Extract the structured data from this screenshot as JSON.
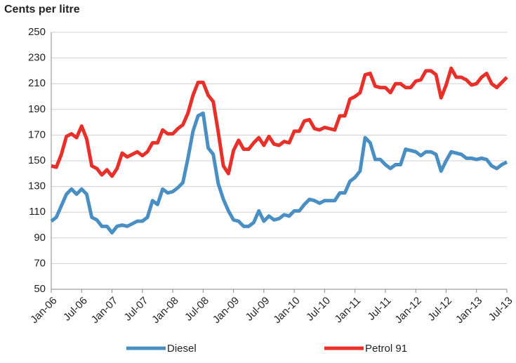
{
  "chart_data": {
    "type": "line",
    "title": "Cents per litre",
    "categories": [
      "Jan-06",
      null,
      null,
      null,
      null,
      null,
      "Jul-06",
      null,
      null,
      null,
      null,
      null,
      "Jan-07",
      null,
      null,
      null,
      null,
      null,
      "Jul-07",
      null,
      null,
      null,
      null,
      null,
      "Jan-08",
      null,
      null,
      null,
      null,
      null,
      "Jul-08",
      null,
      null,
      null,
      null,
      null,
      "Jan-09",
      null,
      null,
      null,
      null,
      null,
      "Jul-09",
      null,
      null,
      null,
      null,
      null,
      "Jan-10",
      null,
      null,
      null,
      null,
      null,
      "Jul-10",
      null,
      null,
      null,
      null,
      null,
      "Jan-11",
      null,
      null,
      null,
      null,
      null,
      "Jul-11",
      null,
      null,
      null,
      null,
      null,
      "Jan-12",
      null,
      null,
      null,
      null,
      null,
      "Jul-12",
      null,
      null,
      null,
      null,
      null,
      "Jan-13",
      null,
      null,
      null,
      null,
      null,
      "Jul-13"
    ],
    "series": [
      {
        "name": "Diesel",
        "color": "#4a8fc4",
        "values": [
          103,
          106,
          115,
          124,
          128,
          124,
          128,
          124,
          106,
          104,
          99,
          99,
          94,
          99,
          100,
          99,
          101,
          103,
          103,
          106,
          119,
          116,
          128,
          125,
          126,
          129,
          133,
          152,
          173,
          185,
          187,
          160,
          155,
          132,
          120,
          111,
          104,
          103,
          99,
          99,
          102,
          111,
          103,
          107,
          104,
          105,
          108,
          107,
          111,
          111,
          116,
          120,
          119,
          117,
          119,
          119,
          119,
          125,
          125,
          134,
          137,
          142,
          168,
          164,
          151,
          151,
          147,
          144,
          147,
          147,
          159,
          158,
          157,
          154,
          157,
          157,
          155,
          142,
          150,
          157,
          156,
          155,
          152,
          152,
          151,
          152,
          151,
          146,
          144,
          147,
          149
        ]
      },
      {
        "name": "Petrol 91",
        "color": "#e8302a",
        "values": [
          146,
          145,
          155,
          169,
          171,
          168,
          177,
          167,
          146,
          144,
          139,
          143,
          138,
          144,
          156,
          153,
          155,
          157,
          154,
          157,
          164,
          164,
          174,
          171,
          171,
          175,
          178,
          187,
          201,
          211,
          211,
          201,
          196,
          172,
          146,
          140,
          158,
          166,
          159,
          159,
          164,
          168,
          162,
          169,
          163,
          162,
          165,
          164,
          173,
          173,
          181,
          182,
          175,
          174,
          176,
          175,
          174,
          185,
          185,
          198,
          200,
          203,
          217,
          218,
          208,
          207,
          207,
          203,
          210,
          210,
          207,
          207,
          212,
          213,
          220,
          220,
          217,
          199,
          209,
          222,
          215,
          215,
          213,
          209,
          210,
          215,
          218,
          210,
          207,
          211,
          215
        ]
      }
    ],
    "ylim": [
      50,
      250
    ],
    "yticks": [
      50,
      70,
      90,
      110,
      130,
      150,
      170,
      190,
      210,
      230,
      250
    ],
    "grid": true
  }
}
